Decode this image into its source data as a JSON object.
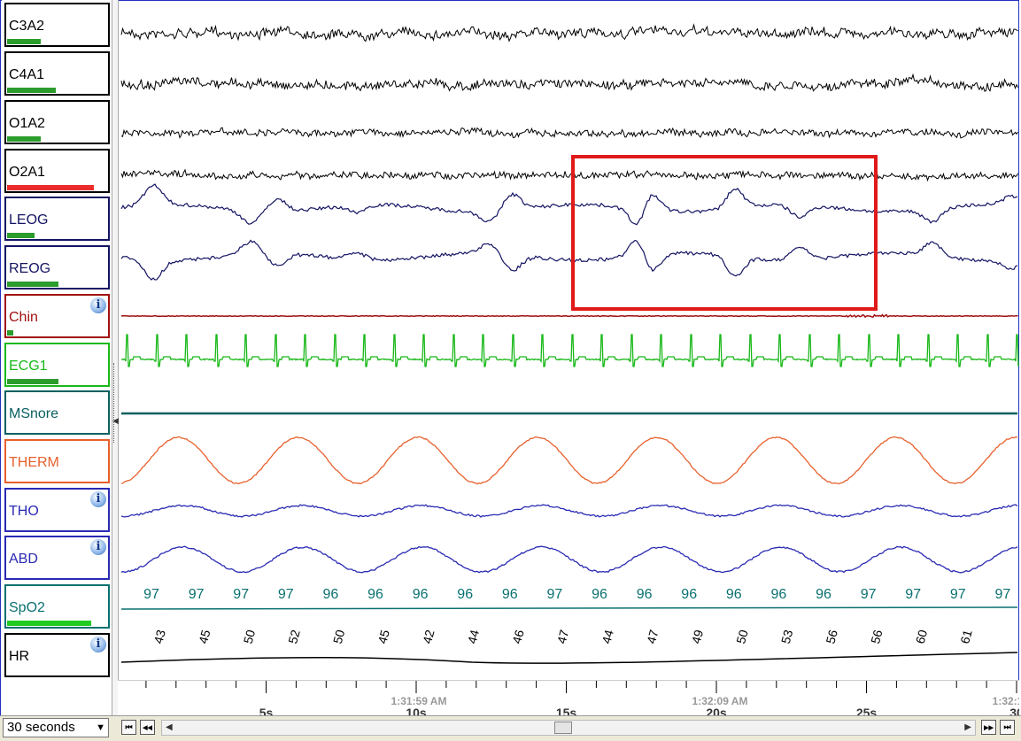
{
  "channels": [
    {
      "id": "c3a2",
      "label": "C3A2",
      "color": "#000000",
      "bar_color": "#2c9c2c",
      "bar_fraction": 0.33,
      "info": false
    },
    {
      "id": "c4a1",
      "label": "C4A1",
      "color": "#000000",
      "bar_color": "#2c9c2c",
      "bar_fraction": 0.48,
      "info": false
    },
    {
      "id": "o1a2",
      "label": "O1A2",
      "color": "#000000",
      "bar_color": "#2c9c2c",
      "bar_fraction": 0.33,
      "info": false
    },
    {
      "id": "o2a1",
      "label": "O2A1",
      "color": "#000000",
      "bar_color": "#ea2c2c",
      "bar_fraction": 0.85,
      "info": false
    },
    {
      "id": "leog",
      "label": "LEOG",
      "color": "#141464",
      "bar_color": "#2c9c2c",
      "bar_fraction": 0.27,
      "info": false
    },
    {
      "id": "reog",
      "label": "REOG",
      "color": "#141464",
      "bar_color": "#2c9c2c",
      "bar_fraction": 0.5,
      "info": false
    },
    {
      "id": "chin",
      "label": "Chin",
      "color": "#a01010",
      "bar_color": "#2c9c2c",
      "bar_fraction": 0.06,
      "info": true
    },
    {
      "id": "ecg1",
      "label": "ECG1",
      "color": "#19b819",
      "bar_color": "#2c9c2c",
      "bar_fraction": 0.5,
      "info": false
    },
    {
      "id": "msnore",
      "label": "MSnore",
      "color": "#0a6060",
      "bar_color": "#2c9c2c",
      "bar_fraction": 0,
      "info": false
    },
    {
      "id": "therm",
      "label": "THERM",
      "color": "#e8602c",
      "bar_color": "#2c9c2c",
      "bar_fraction": 0,
      "info": false
    },
    {
      "id": "tho",
      "label": "THO",
      "color": "#2a2ab4",
      "bar_color": "#2c9c2c",
      "bar_fraction": 0,
      "info": true
    },
    {
      "id": "abd",
      "label": "ABD",
      "color": "#2a2ab4",
      "bar_color": "#2c9c2c",
      "bar_fraction": 0,
      "info": true
    },
    {
      "id": "spo2",
      "label": "SpO2",
      "color": "#0a7070",
      "bar_color": "#22cc22",
      "bar_fraction": 0.83,
      "info": false
    },
    {
      "id": "hr",
      "label": "HR",
      "color": "#000000",
      "bar_color": "#2c9c2c",
      "bar_fraction": 0,
      "info": true
    }
  ],
  "info_glyph": "i",
  "spo2_values": [
    "97",
    "97",
    "97",
    "97",
    "96",
    "96",
    "96",
    "96",
    "96",
    "97",
    "96",
    "96",
    "96",
    "96",
    "96",
    "96",
    "97",
    "97",
    "97",
    "97"
  ],
  "hr_values": [
    "43",
    "45",
    "50",
    "52",
    "50",
    "45",
    "42",
    "44",
    "46",
    "47",
    "44",
    "47",
    "49",
    "50",
    "53",
    "56",
    "56",
    "60",
    "61"
  ],
  "time_axis": {
    "second_labels": [
      "5s",
      "10s",
      "15s",
      "20s",
      "25s",
      "30"
    ],
    "clock_labels": [
      "1:31:59 AM",
      "1:32:09 AM",
      "1:32:1"
    ]
  },
  "epoch_select": {
    "value": "30 seconds"
  },
  "nav": {
    "first": "⏮",
    "prev": "◀◀",
    "next": "▶▶",
    "last": "⏭",
    "scroll_left": "◀",
    "scroll_right": "▶",
    "dropdown_arrow": "▼"
  },
  "highlight_color": "#e01a1a"
}
